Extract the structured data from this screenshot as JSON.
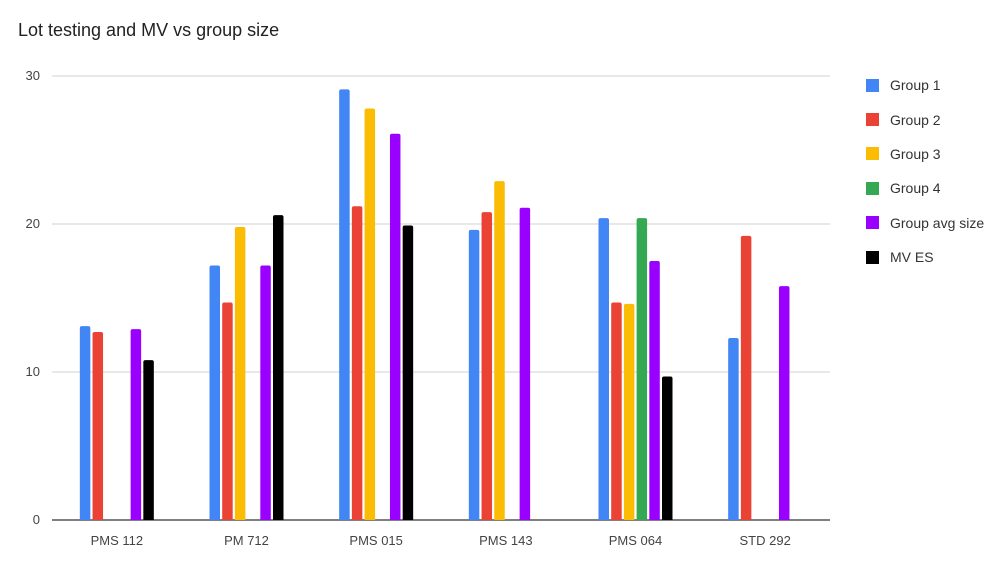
{
  "chart_data": {
    "type": "bar",
    "title": "Lot testing and MV vs group size",
    "xlabel": "",
    "ylabel": "",
    "ylim": [
      0,
      30
    ],
    "yticks": [
      0,
      10,
      20,
      30
    ],
    "grid": true,
    "legend_position": "right",
    "categories": [
      "PMS 112",
      "PM 712",
      "PMS 015",
      "PMS 143",
      "PMS 064",
      "STD 292"
    ],
    "series": [
      {
        "name": "Group 1",
        "color": "#4285F4",
        "values": [
          13.1,
          17.2,
          29.1,
          19.6,
          20.4,
          12.3
        ]
      },
      {
        "name": "Group 2",
        "color": "#EA4335",
        "values": [
          12.7,
          14.7,
          21.2,
          20.8,
          14.7,
          19.2
        ]
      },
      {
        "name": "Group 3",
        "color": "#FBBC04",
        "values": [
          null,
          19.8,
          27.8,
          22.9,
          14.6,
          null
        ]
      },
      {
        "name": "Group 4",
        "color": "#34A853",
        "values": [
          null,
          null,
          null,
          null,
          20.4,
          null
        ]
      },
      {
        "name": "Group avg size",
        "color": "#9900FF",
        "values": [
          12.9,
          17.2,
          26.1,
          21.1,
          17.5,
          15.8
        ]
      },
      {
        "name": "MV ES",
        "color": "#000000",
        "values": [
          10.8,
          20.6,
          19.9,
          null,
          9.7,
          null
        ]
      }
    ]
  }
}
